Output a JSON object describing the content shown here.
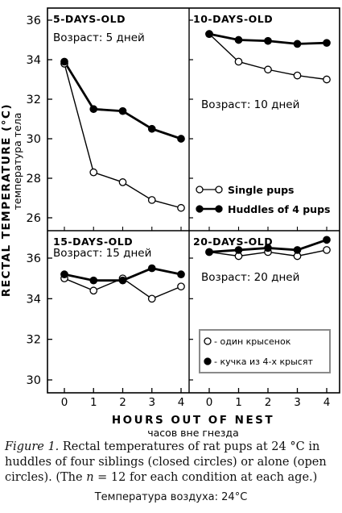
{
  "chart_data": {
    "type": "line",
    "layout": "2x2 small multiples, shared axes",
    "ylabel": "RECTAL TEMPERATURE (°C)",
    "ylabel_ru": "температура тела",
    "xlabel": "HOURS OUT OF NEST",
    "xlabel_ru": "часов вне гнезда",
    "x_ticks": [
      "0",
      "1",
      "2",
      "3",
      "4"
    ],
    "x_values": [
      0,
      1,
      2,
      3,
      4
    ],
    "top_row": {
      "ylim": [
        25.5,
        36.5
      ],
      "y_ticks": [
        "26",
        "28",
        "30",
        "32",
        "34",
        "36"
      ],
      "y_values": [
        26,
        28,
        30,
        32,
        34,
        36
      ]
    },
    "bottom_row": {
      "ylim": [
        29.5,
        37.5
      ],
      "y_ticks": [
        "30",
        "32",
        "34",
        "36"
      ],
      "y_values": [
        30,
        32,
        34,
        36
      ]
    },
    "legend_top": [
      {
        "label": "Single pups",
        "marker": "open-circle"
      },
      {
        "label": "Huddles of 4 pups",
        "marker": "filled-circle"
      }
    ],
    "legend_bottom": [
      {
        "label": "- один крысенок",
        "marker": "open-circle"
      },
      {
        "label": "- кучка из 4-х крысят",
        "marker": "filled-circle"
      }
    ],
    "panels": [
      {
        "title": "5-DAYS-OLD",
        "annotation": "Возраст: 5 дней",
        "series": [
          {
            "marker": "open",
            "values": [
              33.8,
              28.3,
              27.8,
              26.9,
              26.5
            ]
          },
          {
            "marker": "filled",
            "values": [
              33.9,
              31.5,
              31.4,
              30.5,
              30.0
            ]
          }
        ]
      },
      {
        "title": "10-DAYS-OLD",
        "annotation": "Возраст: 10 дней",
        "series": [
          {
            "marker": "open",
            "values": [
              35.3,
              33.9,
              33.5,
              33.2,
              33.0
            ]
          },
          {
            "marker": "filled",
            "values": [
              35.3,
              35.0,
              34.95,
              34.8,
              34.85
            ]
          }
        ]
      },
      {
        "title": "15-DAYS-OLD",
        "annotation": "Возраст: 15 дней",
        "series": [
          {
            "marker": "open",
            "values": [
              35.0,
              34.4,
              35.0,
              34.0,
              34.6
            ]
          },
          {
            "marker": "filled",
            "values": [
              35.2,
              34.9,
              34.9,
              35.5,
              35.2
            ]
          }
        ]
      },
      {
        "title": "20-DAYS-OLD",
        "annotation": "Возраст: 20 дней",
        "series": [
          {
            "marker": "open",
            "values": [
              36.3,
              36.1,
              36.3,
              36.1,
              36.4
            ]
          },
          {
            "marker": "filled",
            "values": [
              36.3,
              36.4,
              36.5,
              36.4,
              36.9
            ]
          }
        ]
      }
    ]
  },
  "caption": {
    "label": "Figure 1.",
    "text_before_n": " Rectal temperatures of rat pups at 24 °C in huddles of four siblings (closed circles) or alone (open circles). (The ",
    "n": "n",
    "text_after_n": " = 12 for each condition at each age.)"
  },
  "air_temperature": "Температура воздуха: 24°C"
}
